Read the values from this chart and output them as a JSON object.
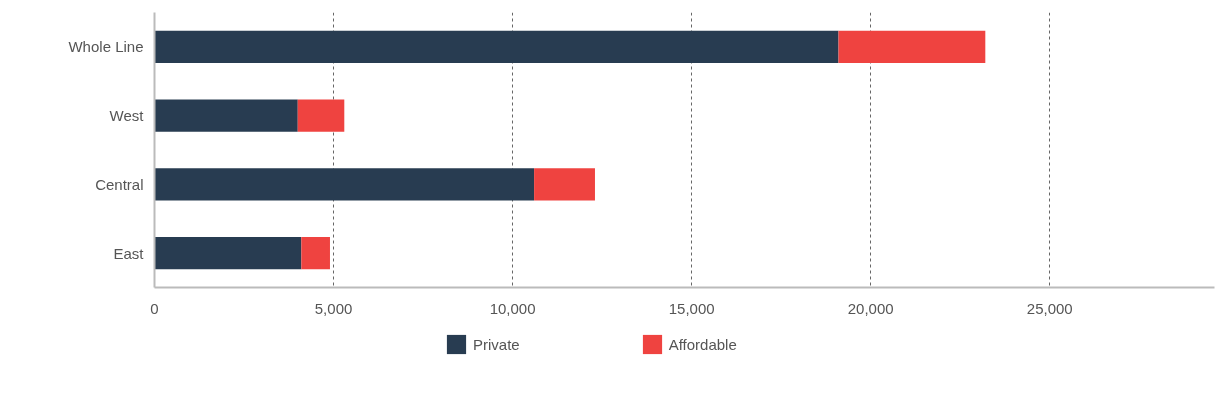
{
  "chart_data": {
    "type": "bar",
    "orientation": "horizontal",
    "stacked": true,
    "categories": [
      "Whole Line",
      "West",
      "Central",
      "East"
    ],
    "series": [
      {
        "name": "Private",
        "color": "#283c51",
        "values": [
          19100,
          4000,
          10600,
          4100
        ]
      },
      {
        "name": "Affordable",
        "color": "#ef4340",
        "values": [
          4100,
          1300,
          1700,
          800
        ]
      }
    ],
    "xlim": [
      0,
      29600
    ],
    "xticks": [
      0,
      {
        "value": 5000,
        "label": "5,000"
      },
      {
        "value": 10000,
        "label": "10,000"
      },
      {
        "value": 15000,
        "label": "15,000"
      },
      {
        "value": 20000,
        "label": "20,000"
      },
      {
        "value": 25000,
        "label": "25,000"
      }
    ],
    "grid": "x",
    "legend": "bottom"
  }
}
